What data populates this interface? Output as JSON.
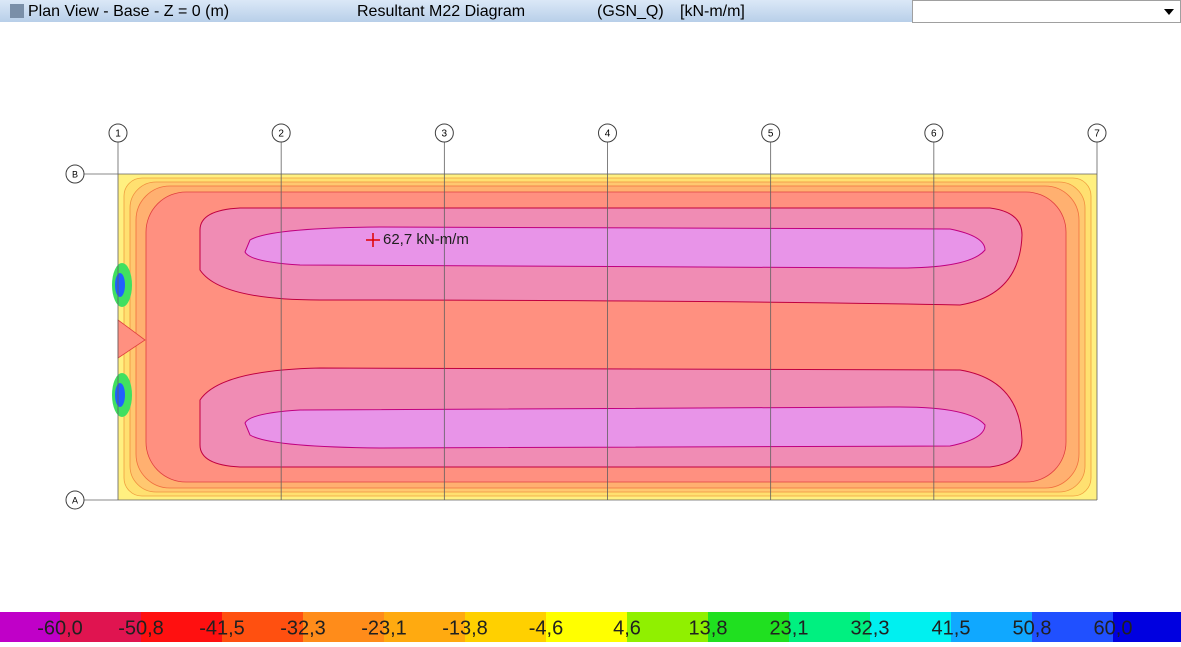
{
  "header": {
    "view": "Plan View - Base - Z = 0 (m)",
    "diagram": "Resultant M22 Diagram",
    "case": "(GSN_Q)",
    "units": "[kN-m/m]"
  },
  "grid": {
    "columns": [
      "1",
      "2",
      "3",
      "4",
      "5",
      "6",
      "7"
    ],
    "rows": [
      "B",
      "A"
    ]
  },
  "annotation": "62,7 kN-m/m",
  "legend": {
    "labels": [
      "-60,0",
      "-50,8",
      "-41,5",
      "-32,3",
      "-23,1",
      "-13,8",
      "-4,6",
      "4,6",
      "13,8",
      "23,1",
      "32,3",
      "41,5",
      "50,8",
      "60,0"
    ],
    "colors": [
      "#c000c8",
      "#e01450",
      "#ff1010",
      "#ff5010",
      "#ff8c1a",
      "#ffaa10",
      "#ffd000",
      "#ffff00",
      "#90f000",
      "#20e020",
      "#00f080",
      "#00f0f0",
      "#10a8ff",
      "#2050ff",
      "#0000e0"
    ]
  }
}
